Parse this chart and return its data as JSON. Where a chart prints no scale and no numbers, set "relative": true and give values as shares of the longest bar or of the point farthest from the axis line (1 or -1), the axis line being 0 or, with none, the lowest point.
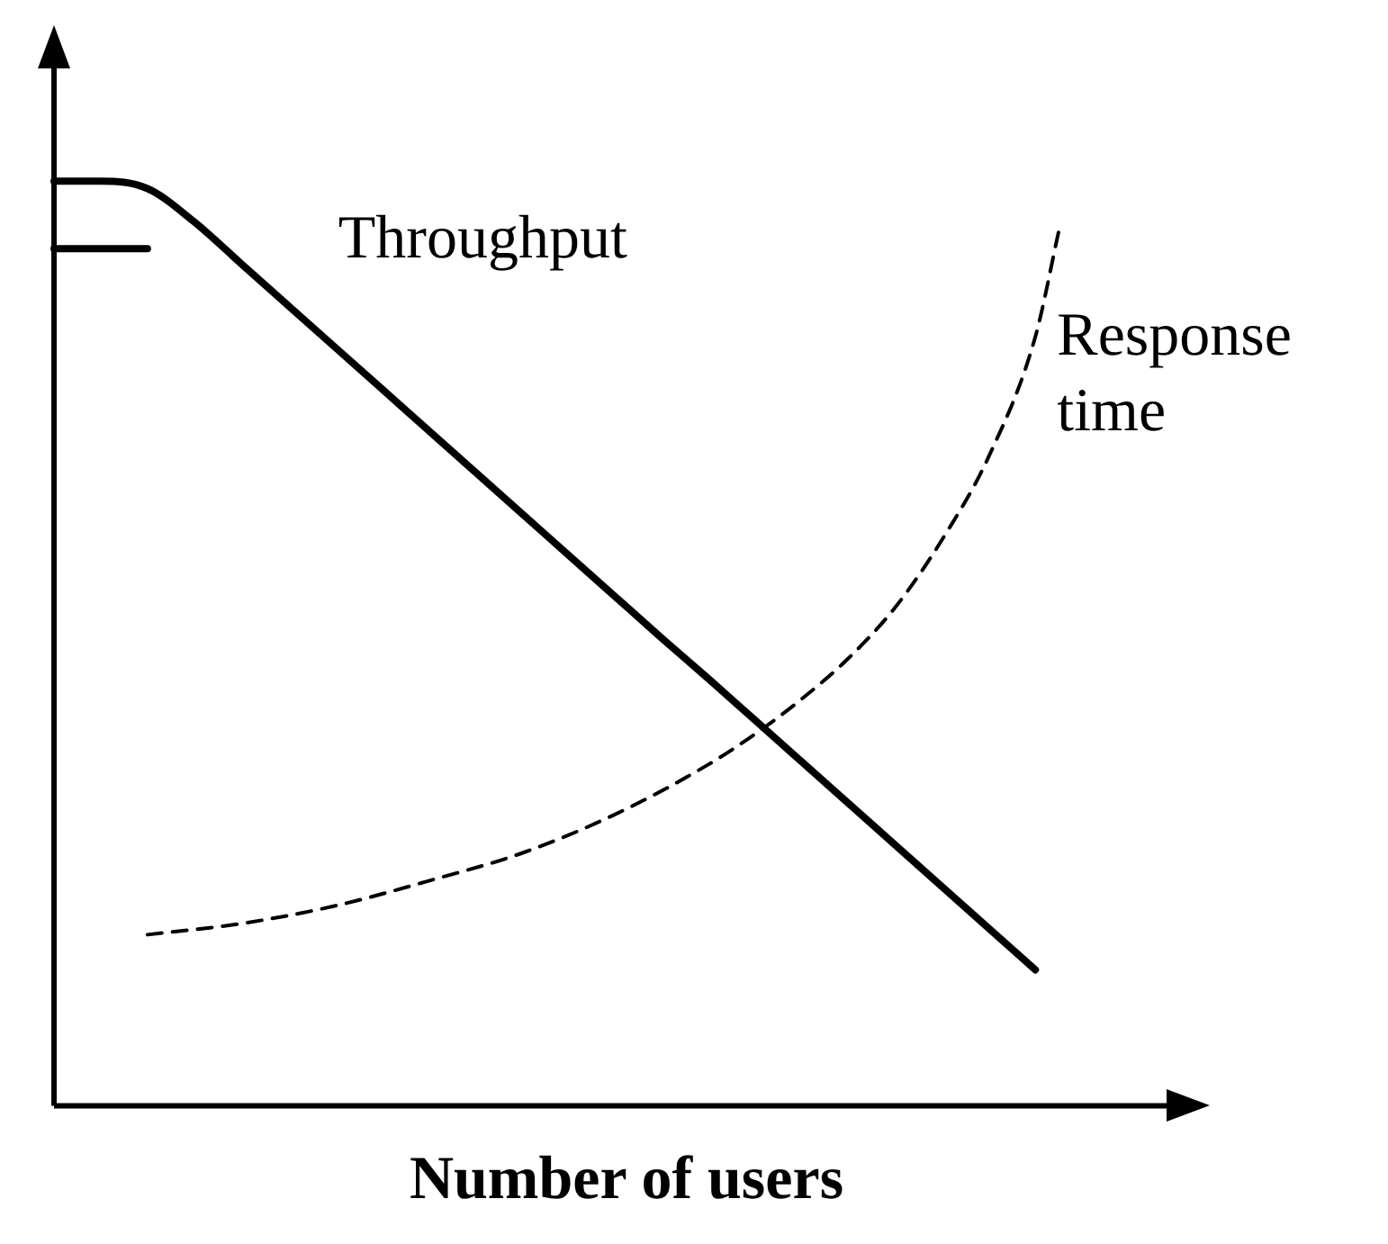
{
  "chart_data": {
    "type": "line",
    "relative": true,
    "xlabel": "Number of users",
    "categories": [
      null,
      null,
      null,
      null,
      null,
      null,
      null,
      null,
      null,
      null,
      null,
      null,
      null,
      null,
      null,
      null,
      null,
      null,
      null,
      null,
      null,
      null,
      null,
      null,
      null,
      null,
      null,
      null,
      null,
      null,
      null,
      null,
      null,
      null,
      null,
      null,
      null,
      null,
      null,
      null,
      null,
      null,
      null,
      null,
      null,
      null,
      null,
      null,
      null,
      null
    ],
    "series": [
      {
        "name": "Throughput",
        "color": "#000000",
        "line_style": "solid",
        "values": [
          1,
          null,
          1,
          null,
          0.992,
          null,
          0.956,
          null,
          0.911,
          null,
          0.866,
          null,
          0.821,
          null,
          0.776,
          null,
          0.731,
          null,
          0.686,
          null,
          0.641,
          null,
          0.596,
          null,
          0.551,
          null,
          0.506,
          null,
          0.462,
          null,
          0.417,
          null,
          0.372,
          null,
          0.327,
          null,
          0.282,
          null,
          0.237,
          null,
          0.192,
          null,
          0.147,
          null,
          null,
          null,
          null,
          null,
          null,
          null
        ]
      },
      {
        "color": "#000000",
        "line_style": "solid",
        "values": [
          0.927,
          null,
          null,
          null,
          0.927,
          null,
          null,
          null,
          null,
          null,
          null,
          null,
          null,
          null,
          null,
          null,
          null,
          null,
          null,
          null,
          null,
          null,
          null,
          null,
          null,
          null,
          null,
          null,
          null,
          null,
          null,
          null,
          null,
          null,
          null,
          null,
          null,
          null,
          null,
          null,
          null,
          null,
          null,
          null,
          null,
          null,
          null,
          null,
          null,
          null
        ]
      },
      {
        "name": "Response time",
        "color": "#000000",
        "line_style": "dashed",
        "values": [
          null,
          null,
          null,
          null,
          0.185,
          null,
          null,
          null,
          0.197,
          null,
          null,
          null,
          0.216,
          null,
          null,
          null,
          0.243,
          null,
          null,
          null,
          0.273,
          null,
          null,
          null,
          0.315,
          null,
          null,
          null,
          0.369,
          null,
          0.402,
          null,
          0.44,
          null,
          0.484,
          null,
          0.539,
          null,
          0.612,
          null,
          0.702,
          null,
          0.832,
          0.946,
          null,
          null,
          null,
          null,
          null,
          null
        ]
      }
    ],
    "grid": false,
    "legend": false,
    "marker": "none"
  }
}
